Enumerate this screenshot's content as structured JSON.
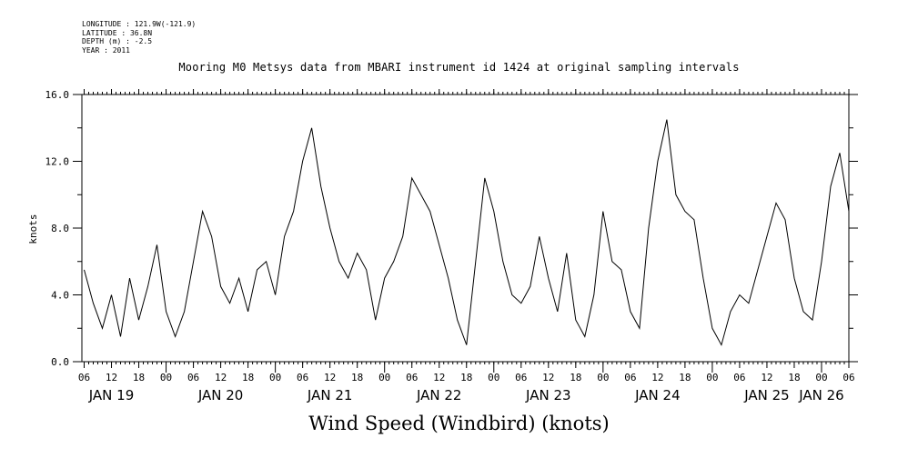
{
  "metadata_lines": [
    "LONGITUDE : 121.9W(-121.9)",
    "LATITUDE : 36.8N",
    "DEPTH (m) : -2.5",
    "YEAR : 2011"
  ],
  "chart_data": {
    "type": "line",
    "title": "Mooring M0 Metsys data from MBARI instrument id 1424 at original sampling intervals",
    "bottom_title": "Wind Speed (Windbird) (knots)",
    "ylabel": "knots",
    "xlabel": "",
    "ylim": [
      0,
      16
    ],
    "xlim_hours": [
      -0.5,
      168
    ],
    "yticks": [
      "0.0",
      "4.0",
      "8.0",
      "12.0",
      "16.0"
    ],
    "ytick_values": [
      0,
      4,
      8,
      12,
      16
    ],
    "xtick_hours": [
      "06",
      "12",
      "18",
      "00",
      "06",
      "12",
      "18",
      "00",
      "06",
      "12",
      "18",
      "00",
      "06",
      "12",
      "18",
      "00",
      "06",
      "12",
      "18",
      "00",
      "06",
      "12",
      "18",
      "00",
      "06",
      "12",
      "18",
      "00",
      "06"
    ],
    "day_labels": [
      "JAN 19",
      "JAN 20",
      "JAN 21",
      "JAN 22",
      "JAN 23",
      "JAN 24",
      "JAN 25",
      "JAN 26"
    ],
    "grid": false,
    "line_color": "#000000",
    "series": [
      {
        "x_hours": [
          0,
          2,
          4,
          6,
          8,
          10,
          12,
          14,
          16,
          18,
          20,
          22,
          24,
          26,
          28,
          30,
          32,
          34,
          36,
          38,
          40,
          42,
          44,
          46,
          48,
          50,
          52,
          54,
          56,
          58,
          60,
          62,
          64,
          66,
          68,
          70,
          72,
          74,
          76,
          78,
          80,
          82,
          84,
          86,
          88,
          90,
          92,
          94,
          96,
          98,
          100,
          102,
          104,
          106,
          108,
          110,
          112,
          114,
          116,
          118,
          120,
          122,
          124,
          126,
          128,
          130,
          132,
          134,
          136,
          138,
          140,
          142,
          144,
          146,
          148,
          150,
          152,
          154,
          156,
          158,
          160,
          162,
          164,
          166,
          168
        ],
        "values": [
          5.5,
          3.5,
          2.0,
          4.0,
          1.5,
          5.0,
          2.5,
          4.5,
          7.0,
          3.0,
          1.5,
          3.0,
          6.0,
          9.0,
          7.5,
          4.5,
          3.5,
          5.0,
          3.0,
          5.5,
          6.0,
          4.0,
          7.5,
          9.0,
          12.0,
          14.0,
          10.5,
          8.0,
          6.0,
          5.0,
          6.5,
          5.5,
          2.5,
          5.0,
          6.0,
          7.5,
          11.0,
          10.0,
          9.0,
          7.0,
          5.0,
          2.5,
          1.0,
          6.0,
          11.0,
          9.0,
          6.0,
          4.0,
          3.5,
          4.5,
          7.5,
          5.0,
          3.0,
          6.5,
          2.5,
          1.5,
          4.0,
          9.0,
          6.0,
          5.5,
          3.0,
          2.0,
          8.0,
          12.0,
          14.5,
          10.0,
          9.0,
          8.5,
          5.0,
          2.0,
          1.0,
          3.0,
          4.0,
          3.5,
          5.5,
          7.5,
          9.5,
          8.5,
          5.0,
          3.0,
          2.5,
          6.0,
          10.5,
          12.5,
          9.0
        ]
      }
    ]
  }
}
